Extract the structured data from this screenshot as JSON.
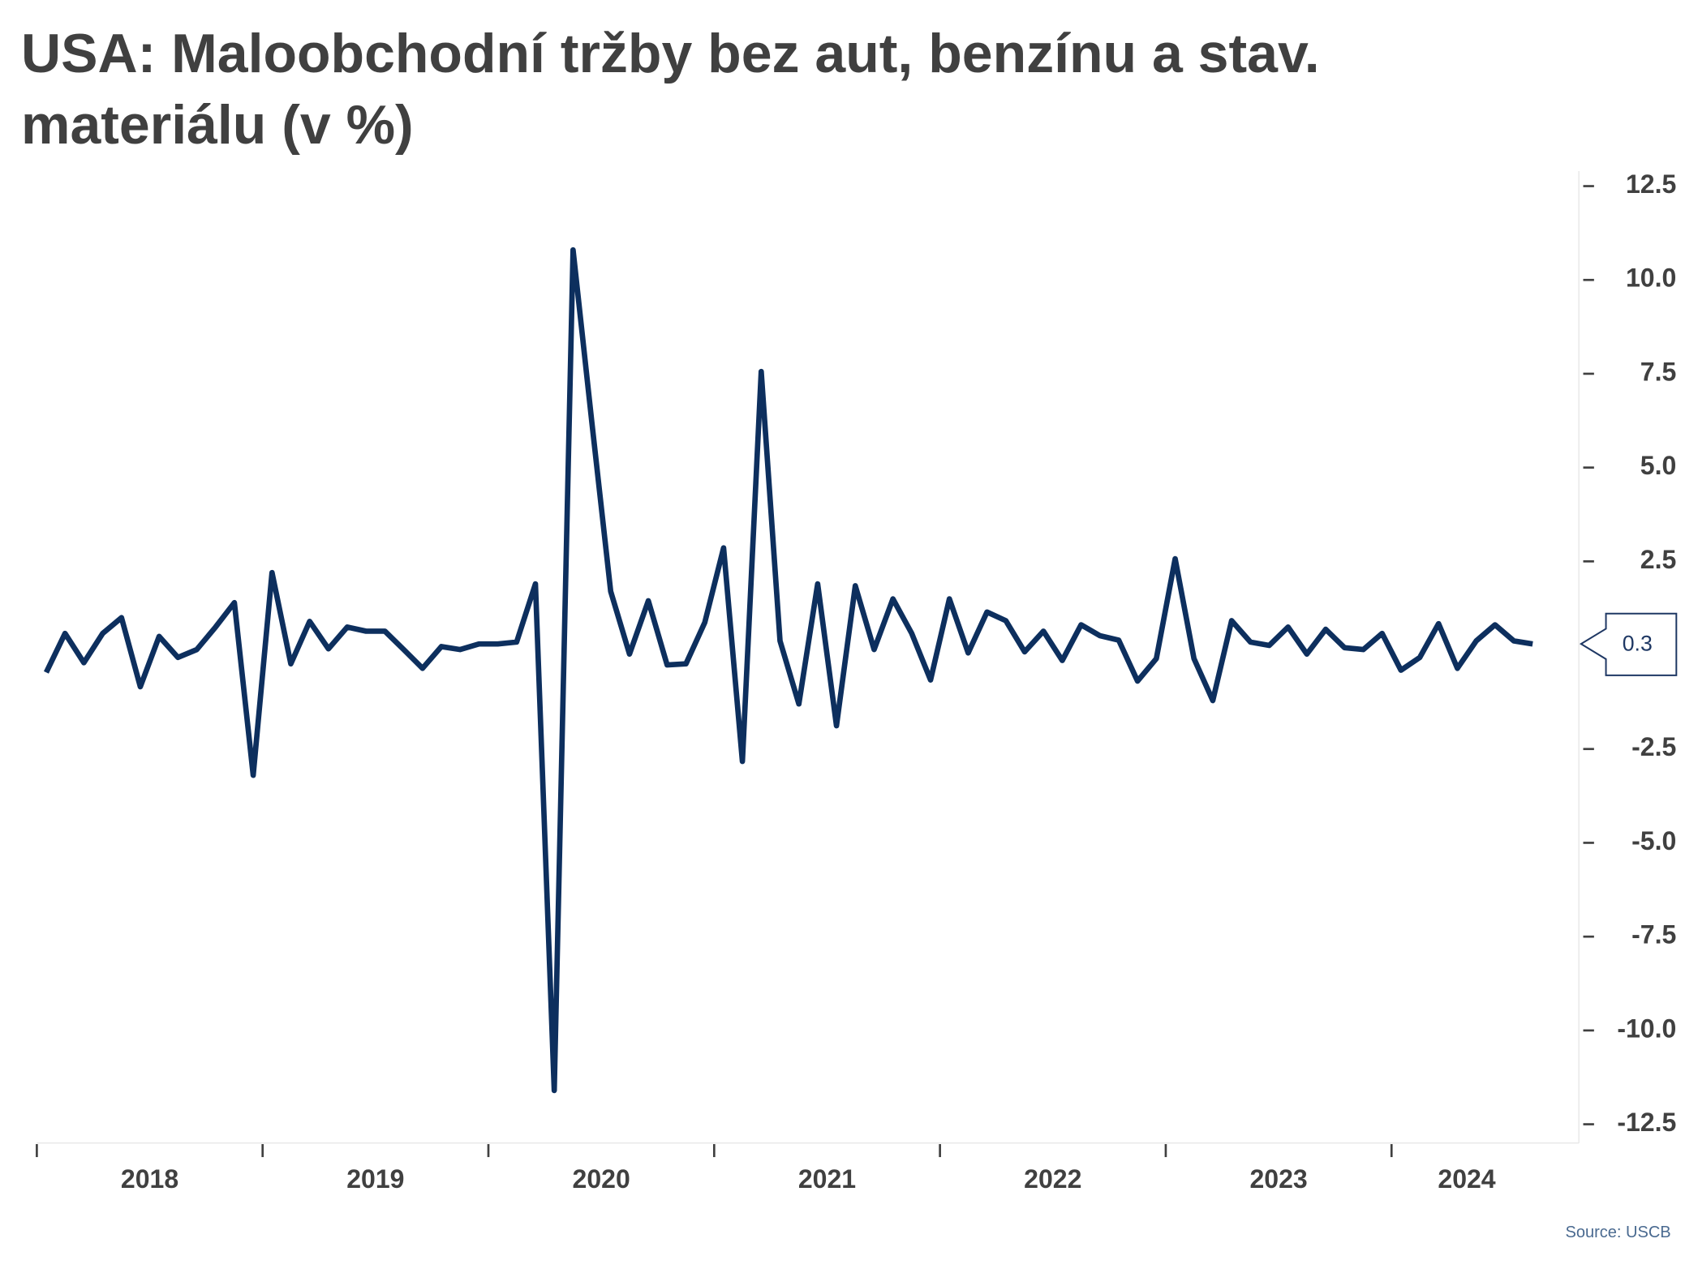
{
  "chart_data": {
    "type": "line",
    "title": "USA: Maloobchodní tržby bez aut, benzínu a stav. materiálu (v %)",
    "source": "Source: USCB",
    "categories": [
      "2018",
      null,
      null,
      null,
      null,
      null,
      null,
      null,
      null,
      null,
      null,
      null,
      "2019",
      null,
      null,
      null,
      null,
      null,
      null,
      null,
      null,
      null,
      null,
      null,
      "2020",
      null,
      null,
      null,
      null,
      null,
      null,
      null,
      null,
      null,
      null,
      null,
      "2021",
      null,
      null,
      null,
      null,
      null,
      null,
      null,
      null,
      null,
      null,
      null,
      "2022",
      null,
      null,
      null,
      null,
      null,
      null,
      null,
      null,
      null,
      null,
      null,
      "2023",
      null,
      null,
      null,
      null,
      null,
      null,
      null,
      null,
      null,
      null,
      null,
      "2024",
      null,
      null,
      null,
      null,
      null,
      null,
      null
    ],
    "values": [
      -0.46,
      0.58,
      -0.2,
      0.58,
      1.0,
      -0.84,
      0.5,
      -0.06,
      0.15,
      0.75,
      1.4,
      -3.2,
      2.2,
      -0.23,
      0.9,
      0.17,
      0.75,
      0.64,
      0.64,
      0.15,
      -0.35,
      0.23,
      0.15,
      0.3,
      0.3,
      0.35,
      1.9,
      -11.6,
      10.8,
      6.2,
      1.7,
      0.03,
      1.45,
      -0.26,
      -0.23,
      0.87,
      2.86,
      -2.83,
      7.56,
      0.38,
      -1.3,
      1.9,
      -1.88,
      1.85,
      0.15,
      1.5,
      0.58,
      -0.66,
      1.5,
      0.06,
      1.15,
      0.92,
      0.09,
      0.64,
      -0.14,
      0.81,
      0.52,
      0.4,
      -0.69,
      -0.09,
      2.57,
      -0.09,
      -1.21,
      0.92,
      0.35,
      0.26,
      0.75,
      0.03,
      0.69,
      0.2,
      0.15,
      0.58,
      -0.4,
      -0.06,
      0.84,
      -0.35,
      0.38,
      0.81,
      0.38,
      0.3
    ],
    "color": "#0d2f5e",
    "ylim": [
      -13,
      12.9
    ],
    "yticks": [
      12.5,
      {
        "value": 10,
        "label": "10.0"
      },
      7.5,
      {
        "value": 5,
        "label": "5.0"
      },
      2.5,
      -2.5,
      {
        "value": -5,
        "label": "-5.0"
      },
      -7.5,
      {
        "value": -10,
        "label": "-10.0"
      },
      -12.5
    ]
  }
}
